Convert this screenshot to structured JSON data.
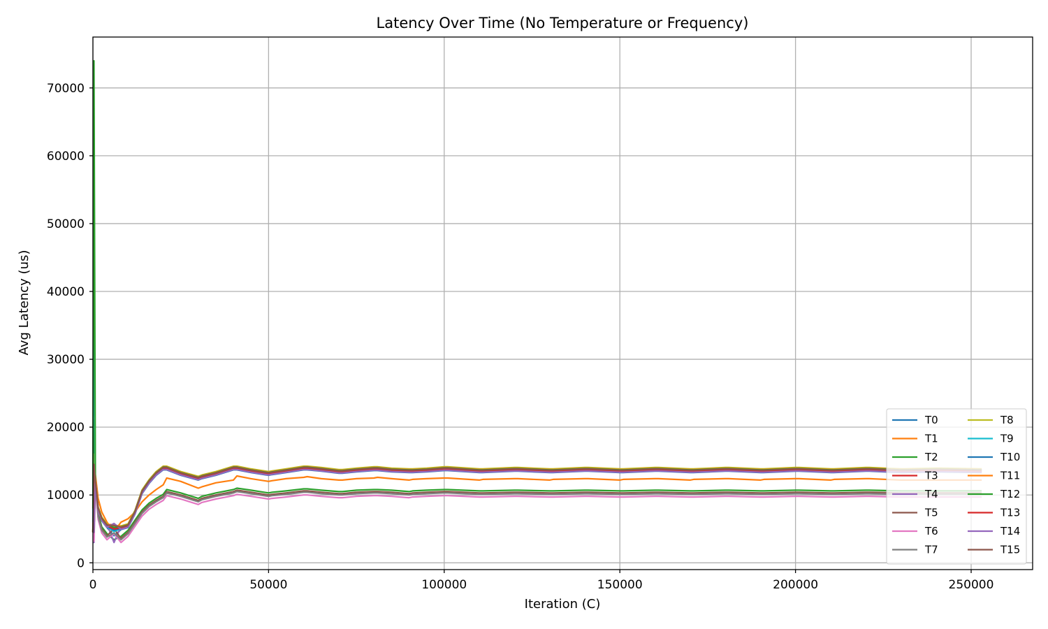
{
  "chart_data": {
    "type": "line",
    "title": "Latency Over Time (No Temperature or Frequency)",
    "xlabel": "Iteration (C)",
    "ylabel": "Avg Latency (us)",
    "xlim": [
      0,
      267500
    ],
    "ylim": [
      -1000,
      77500
    ],
    "xticks": [
      0,
      50000,
      100000,
      150000,
      200000,
      250000
    ],
    "yticks": [
      0,
      10000,
      20000,
      30000,
      40000,
      50000,
      60000,
      70000
    ],
    "grid": true,
    "legend": {
      "placement": "lower-right",
      "columns": 2
    },
    "x": [
      0,
      300,
      700,
      1500,
      2500,
      4000,
      6000,
      8000,
      10000,
      12000,
      14000,
      16000,
      18000,
      20000,
      21000,
      25000,
      30000,
      31000,
      35000,
      40000,
      41000,
      45000,
      50000,
      51000,
      55000,
      60000,
      61000,
      65000,
      70000,
      71000,
      75000,
      80000,
      81000,
      85000,
      90000,
      91000,
      95000,
      100000,
      101000,
      110000,
      111000,
      120000,
      121000,
      130000,
      131000,
      140000,
      141000,
      150000,
      151000,
      160000,
      161000,
      170000,
      171000,
      180000,
      181000,
      190000,
      191000,
      200000,
      201000,
      210000,
      211000,
      220000,
      221000,
      230000,
      231000,
      240000,
      241000,
      253000
    ],
    "series": [
      {
        "name": "T0",
        "color": "#1f77b4",
        "group": "high",
        "start": 4500,
        "peak": 4500,
        "dip": 4000,
        "offset": -300
      },
      {
        "name": "T1",
        "color": "#ff7f0e",
        "group": "mid",
        "start": 4500,
        "peak": 15500,
        "dip": 4600,
        "offset": 1000
      },
      {
        "name": "T2",
        "color": "#2ca02c",
        "group": "low",
        "start": 4500,
        "peak": 21000,
        "dip": 3400,
        "offset": 300
      },
      {
        "name": "T3",
        "color": "#d62728",
        "group": "high",
        "start": 4500,
        "peak": 4500,
        "dip": 5200,
        "offset": 0
      },
      {
        "name": "T4",
        "color": "#9467bd",
        "group": "high",
        "start": 3000,
        "peak": 3000,
        "dip": 3000,
        "offset": 200
      },
      {
        "name": "T5",
        "color": "#8c564b",
        "group": "low",
        "start": 4500,
        "peak": 14000,
        "dip": 5000,
        "offset": 0
      },
      {
        "name": "T6",
        "color": "#e377c2",
        "group": "low",
        "start": 3200,
        "peak": 3200,
        "dip": 4300,
        "offset": -600
      },
      {
        "name": "T7",
        "color": "#7f7f7f",
        "group": "low",
        "start": 4500,
        "peak": 4500,
        "dip": 4400,
        "offset": -200
      },
      {
        "name": "T8",
        "color": "#bcbd22",
        "group": "high",
        "start": 4500,
        "peak": 16000,
        "dip": 5400,
        "offset": 250
      },
      {
        "name": "T9",
        "color": "#17becf",
        "group": "high",
        "start": 6000,
        "peak": 42500,
        "dip": 4600,
        "offset": -150
      },
      {
        "name": "T10",
        "color": "#1f77b4",
        "group": "high",
        "start": 4500,
        "peak": 4500,
        "dip": 4800,
        "offset": -100
      },
      {
        "name": "T11",
        "color": "#ff7f0e",
        "group": "high",
        "start": 4500,
        "peak": 4500,
        "dip": 5600,
        "offset": 150
      },
      {
        "name": "T12",
        "color": "#2ca02c",
        "group": "high",
        "start": 8000,
        "peak": 74000,
        "dip": 5200,
        "offset": 100
      },
      {
        "name": "T13",
        "color": "#d62728",
        "group": "high",
        "start": 4500,
        "peak": 4500,
        "dip": 5000,
        "offset": -50
      },
      {
        "name": "T14",
        "color": "#9467bd",
        "group": "high",
        "start": 4500,
        "peak": 4500,
        "dip": 5800,
        "offset": -250
      },
      {
        "name": "T15",
        "color": "#8c564b",
        "group": "high",
        "start": 4500,
        "peak": 14500,
        "dip": 5500,
        "offset": 50
      }
    ],
    "profiles": {
      "high": [
        4500,
        4500,
        12000,
        8000,
        6500,
        5500,
        5200,
        5200,
        5500,
        7500,
        10500,
        12000,
        13200,
        14000,
        14000,
        13200,
        12500,
        12700,
        13200,
        14000,
        14000,
        13600,
        13200,
        13300,
        13600,
        14000,
        14000,
        13800,
        13500,
        13500,
        13700,
        13900,
        13900,
        13700,
        13600,
        13600,
        13700,
        13900,
        13900,
        13600,
        13600,
        13800,
        13800,
        13600,
        13600,
        13800,
        13800,
        13600,
        13600,
        13800,
        13800,
        13600,
        13600,
        13800,
        13800,
        13600,
        13600,
        13800,
        13800,
        13600,
        13600,
        13800,
        13800,
        13600,
        13600,
        13700,
        13700,
        13600
      ],
      "mid": [
        4500,
        4500,
        12000,
        8500,
        6500,
        5000,
        4600,
        5000,
        5500,
        6500,
        8000,
        9000,
        9800,
        10500,
        11500,
        11000,
        10000,
        10200,
        10800,
        11200,
        11800,
        11400,
        11000,
        11100,
        11400,
        11600,
        11700,
        11400,
        11200,
        11200,
        11400,
        11500,
        11600,
        11400,
        11200,
        11300,
        11400,
        11500,
        11500,
        11200,
        11300,
        11400,
        11400,
        11200,
        11300,
        11400,
        11400,
        11200,
        11300,
        11400,
        11400,
        11200,
        11300,
        11400,
        11400,
        11200,
        11300,
        11400,
        11400,
        11200,
        11300,
        11400,
        11400,
        11200,
        11200,
        11200,
        11200,
        11200
      ],
      "low": [
        4500,
        4500,
        12000,
        7000,
        5000,
        4000,
        3600,
        3600,
        4500,
        6000,
        7500,
        8500,
        9200,
        9800,
        10500,
        10000,
        9200,
        9500,
        10000,
        10500,
        10700,
        10400,
        10000,
        10100,
        10300,
        10600,
        10600,
        10400,
        10200,
        10200,
        10400,
        10500,
        10500,
        10400,
        10200,
        10300,
        10400,
        10500,
        10500,
        10300,
        10300,
        10400,
        10400,
        10300,
        10300,
        10400,
        10400,
        10300,
        10300,
        10400,
        10400,
        10300,
        10300,
        10400,
        10400,
        10300,
        10300,
        10400,
        10400,
        10300,
        10300,
        10400,
        10400,
        10300,
        10300,
        10300,
        10300,
        10300
      ]
    }
  }
}
